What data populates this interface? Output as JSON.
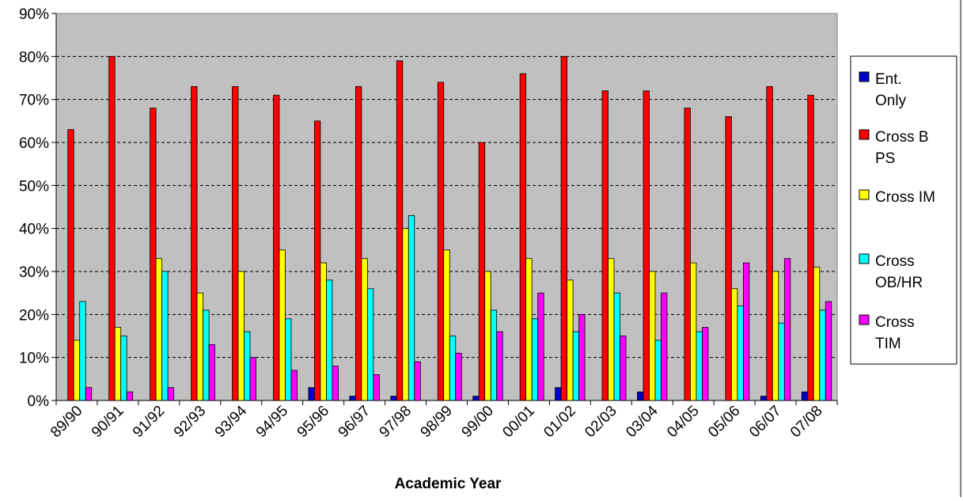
{
  "chart_data": {
    "type": "bar",
    "title": "",
    "xlabel": "Academic Year",
    "ylabel": "",
    "ylim": [
      0,
      90
    ],
    "yticks": [
      "0%",
      "10%",
      "20%",
      "30%",
      "40%",
      "50%",
      "60%",
      "70%",
      "80%",
      "90%"
    ],
    "grid": "horizontal dashed",
    "legend_position": "right",
    "plot_background": "#c0c0c0",
    "categories": [
      "89/90",
      "90/91",
      "91/92",
      "92/93",
      "93/94",
      "94/95",
      "95/96",
      "96/97",
      "97/98",
      "98/99",
      "99/00",
      "00/01",
      "01/02",
      "02/03",
      "03/04",
      "04/05",
      "05/06",
      "06/07",
      "07/08"
    ],
    "series": [
      {
        "name": "Ent. Only",
        "legend_lines": [
          "Ent.",
          "Only"
        ],
        "color": "#0000cc",
        "values": [
          0,
          0,
          0,
          0,
          0,
          0,
          3,
          1,
          1,
          0,
          1,
          0,
          3,
          0,
          2,
          0,
          0,
          1,
          2
        ]
      },
      {
        "name": "Cross B PS",
        "legend_lines": [
          "Cross B",
          "PS"
        ],
        "color": "#ff0000",
        "values": [
          63,
          80,
          68,
          73,
          73,
          71,
          65,
          73,
          79,
          74,
          60,
          76,
          80,
          72,
          72,
          68,
          66,
          73,
          71
        ]
      },
      {
        "name": "Cross IM",
        "legend_lines": [
          "Cross IM"
        ],
        "color": "#ffff00",
        "values": [
          14,
          17,
          33,
          25,
          30,
          35,
          32,
          33,
          40,
          35,
          30,
          33,
          28,
          33,
          30,
          32,
          26,
          30,
          31
        ]
      },
      {
        "name": "Cross OB/HR",
        "legend_lines": [
          "Cross",
          "OB/HR"
        ],
        "color": "#00ffff",
        "values": [
          23,
          15,
          30,
          21,
          16,
          19,
          28,
          26,
          43,
          15,
          21,
          19,
          16,
          25,
          14,
          16,
          22,
          18,
          21
        ]
      },
      {
        "name": "Cross TIM",
        "legend_lines": [
          "Cross",
          "TIM"
        ],
        "color": "#ff00ff",
        "values": [
          3,
          2,
          3,
          13,
          10,
          7,
          8,
          6,
          9,
          11,
          16,
          25,
          20,
          15,
          25,
          17,
          32,
          33,
          23
        ]
      }
    ]
  }
}
